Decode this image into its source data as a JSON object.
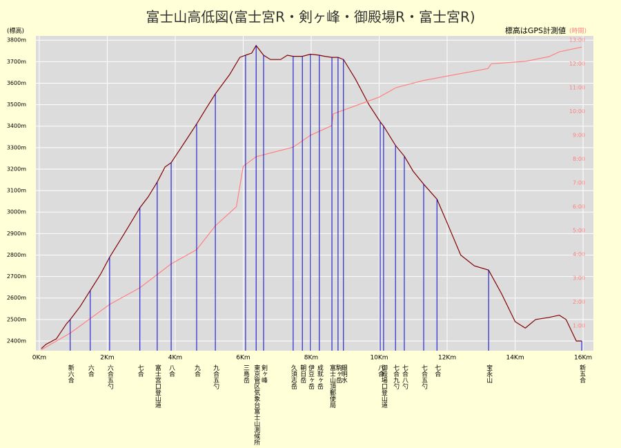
{
  "chart_data": {
    "type": "line",
    "title": "富士山高低図(富士宮R・剣ヶ峰・御殿場R・富士宮R)",
    "y_label": "(標高)",
    "y2_label": "(時間)",
    "note": "標高はGPS計測値",
    "grid": true,
    "xlim": [
      -0.1,
      16.1
    ],
    "ylim": [
      2355,
      3820
    ],
    "y2lim": [
      -0.04,
      13.17
    ],
    "xticks": [
      {
        "value": 0,
        "label": "0Km"
      },
      {
        "value": 2,
        "label": "2Km"
      },
      {
        "value": 4,
        "label": "4Km"
      },
      {
        "value": 6,
        "label": "6Km"
      },
      {
        "value": 8,
        "label": "8Km"
      },
      {
        "value": 10,
        "label": "10Km"
      },
      {
        "value": 12,
        "label": "12Km"
      },
      {
        "value": 14,
        "label": "14Km"
      },
      {
        "value": 16,
        "label": "16Km"
      }
    ],
    "yticks": [
      {
        "value": 2400,
        "label": "2400m"
      },
      {
        "value": 2500,
        "label": "2500m"
      },
      {
        "value": 2600,
        "label": "2600m"
      },
      {
        "value": 2700,
        "label": "2700m"
      },
      {
        "value": 2800,
        "label": "2800m"
      },
      {
        "value": 2900,
        "label": "2900m"
      },
      {
        "value": 3000,
        "label": "3000m"
      },
      {
        "value": 3100,
        "label": "3100m"
      },
      {
        "value": 3200,
        "label": "3200m"
      },
      {
        "value": 3300,
        "label": "3300m"
      },
      {
        "value": 3400,
        "label": "3400m"
      },
      {
        "value": 3500,
        "label": "3500m"
      },
      {
        "value": 3600,
        "label": "3600m"
      },
      {
        "value": 3700,
        "label": "3700m"
      },
      {
        "value": 3800,
        "label": "3800m"
      }
    ],
    "y2ticks": [
      {
        "value": 1,
        "label": "1:00"
      },
      {
        "value": 2,
        "label": "2:00"
      },
      {
        "value": 3,
        "label": "3:00"
      },
      {
        "value": 4,
        "label": "4:00"
      },
      {
        "value": 5,
        "label": "5:00"
      },
      {
        "value": 6,
        "label": "6:00"
      },
      {
        "value": 7,
        "label": "7:00"
      },
      {
        "value": 8,
        "label": "8:00"
      },
      {
        "value": 9,
        "label": "9:00"
      },
      {
        "value": 10,
        "label": "10:00"
      },
      {
        "value": 11,
        "label": "11:00"
      },
      {
        "value": 12,
        "label": "12:00"
      },
      {
        "value": 13,
        "label": "13:00"
      }
    ],
    "series": [
      {
        "name": "標高",
        "color": "#800000",
        "x": [
          0.06,
          0.2,
          0.5,
          0.8,
          0.91,
          1.2,
          1.5,
          1.8,
          2.07,
          2.5,
          2.96,
          3.2,
          3.47,
          3.7,
          3.88,
          4.3,
          4.63,
          4.9,
          5.18,
          5.6,
          5.9,
          6.07,
          6.25,
          6.38,
          6.6,
          6.8,
          7.1,
          7.3,
          7.47,
          7.74,
          7.98,
          8.24,
          8.4,
          8.61,
          8.79,
          8.95,
          9.3,
          9.7,
          10.03,
          10.13,
          10.48,
          10.74,
          11.0,
          11.31,
          11.7,
          12.0,
          12.4,
          12.8,
          13.22,
          13.6,
          14.0,
          14.3,
          14.6,
          15.0,
          15.3,
          15.5,
          15.8,
          15.96
        ],
        "values": [
          2365,
          2385,
          2410,
          2480,
          2500,
          2560,
          2635,
          2710,
          2790,
          2900,
          3020,
          3070,
          3140,
          3210,
          3230,
          3330,
          3410,
          3480,
          3550,
          3640,
          3720,
          3730,
          3740,
          3775,
          3730,
          3710,
          3710,
          3730,
          3725,
          3725,
          3735,
          3730,
          3725,
          3720,
          3720,
          3710,
          3620,
          3500,
          3420,
          3400,
          3310,
          3260,
          3190,
          3130,
          3060,
          2950,
          2800,
          2750,
          2730,
          2620,
          2490,
          2460,
          2500,
          2510,
          2520,
          2500,
          2400,
          2400
        ]
      },
      {
        "name": "時間",
        "color": "#ff8080",
        "axis": "y2",
        "x": [
          0.06,
          0.91,
          2.07,
          2.96,
          3.88,
          4.63,
          5.18,
          5.8,
          6.0,
          6.38,
          7.47,
          7.98,
          8.6,
          8.65,
          10.0,
          10.5,
          11.3,
          13.2,
          13.3,
          14.3,
          15.0,
          15.3,
          15.96
        ],
        "values": [
          0,
          0.7,
          1.9,
          2.6,
          3.6,
          4.2,
          5.2,
          6.0,
          7.7,
          8.1,
          8.5,
          9.0,
          9.4,
          9.9,
          10.6,
          11.0,
          11.3,
          11.8,
          12.0,
          12.1,
          12.3,
          12.5,
          12.7
        ]
      }
    ],
    "stations": [
      {
        "label": "新六合",
        "x": 0.91,
        "elevation": 2500
      },
      {
        "label": "六合",
        "x": 1.5,
        "elevation": 2635
      },
      {
        "label": "六合五勺",
        "x": 2.07,
        "elevation": 2790
      },
      {
        "label": "七合",
        "x": 2.96,
        "elevation": 3020
      },
      {
        "label": "富士宮口登山道",
        "x": 3.47,
        "elevation": 3140
      },
      {
        "label": "八合",
        "x": 3.88,
        "elevation": 3230
      },
      {
        "label": "九合",
        "x": 4.63,
        "elevation": 3410
      },
      {
        "label": "九合五勺",
        "x": 5.18,
        "elevation": 3550
      },
      {
        "label": "三島岳",
        "x": 6.07,
        "elevation": 3730
      },
      {
        "label": "東京管区気象台富士山測候所",
        "x": 6.38,
        "elevation": 3775
      },
      {
        "label": "剣ヶ峰",
        "x": 6.6,
        "elevation": 3730
      },
      {
        "label": "久須志岳",
        "x": 7.47,
        "elevation": 3725
      },
      {
        "label": "朝日岳",
        "x": 7.74,
        "elevation": 3725
      },
      {
        "label": "伊豆ヶ岳",
        "x": 7.98,
        "elevation": 3735
      },
      {
        "label": "成就ヶ岳",
        "x": 8.24,
        "elevation": 3730
      },
      {
        "label": "富士山頂郵便局",
        "x": 8.61,
        "elevation": 3720
      },
      {
        "label": "駒ヶ岳",
        "x": 8.79,
        "elevation": 3720
      },
      {
        "label": "銀明水",
        "x": 8.95,
        "elevation": 3710
      },
      {
        "label": "八合",
        "x": 10.03,
        "elevation": 3420
      },
      {
        "label": "御殿場口登山道",
        "x": 10.13,
        "elevation": 3400
      },
      {
        "label": "七合九勺",
        "x": 10.48,
        "elevation": 3310
      },
      {
        "label": "七合八勺",
        "x": 10.74,
        "elevation": 3260
      },
      {
        "label": "七合五勺",
        "x": 11.31,
        "elevation": 3130
      },
      {
        "label": "七合",
        "x": 11.7,
        "elevation": 3060
      },
      {
        "label": "宝永山",
        "x": 13.22,
        "elevation": 2730
      },
      {
        "label": "新五合",
        "x": 15.96,
        "elevation": 2400
      }
    ]
  }
}
